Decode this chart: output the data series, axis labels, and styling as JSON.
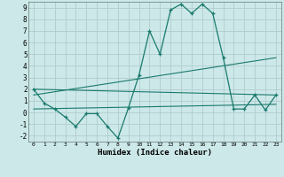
{
  "x": [
    0,
    1,
    2,
    3,
    4,
    5,
    6,
    7,
    8,
    9,
    10,
    11,
    12,
    13,
    14,
    15,
    16,
    17,
    18,
    19,
    20,
    21,
    22,
    23
  ],
  "humidex": [
    2.0,
    0.8,
    0.3,
    -0.4,
    -1.2,
    -0.1,
    -0.1,
    -1.2,
    -2.2,
    0.4,
    3.2,
    7.0,
    5.0,
    8.8,
    9.3,
    8.5,
    9.3,
    8.5,
    4.7,
    0.3,
    0.3,
    1.5,
    0.2,
    1.5
  ],
  "line1_x": [
    0,
    23
  ],
  "line1_y": [
    2.0,
    1.5
  ],
  "line2_x": [
    0,
    23
  ],
  "line2_y": [
    1.5,
    4.7
  ],
  "line3_x": [
    0,
    23
  ],
  "line3_y": [
    0.3,
    0.7
  ],
  "color": "#1a7a6e",
  "bg_color": "#cce8e8",
  "grid_color": "#b0cccc",
  "xlabel": "Humidex (Indice chaleur)",
  "xlim": [
    -0.5,
    23.5
  ],
  "ylim": [
    -2.5,
    9.5
  ],
  "xticks": [
    0,
    1,
    2,
    3,
    4,
    5,
    6,
    7,
    8,
    9,
    10,
    11,
    12,
    13,
    14,
    15,
    16,
    17,
    18,
    19,
    20,
    21,
    22,
    23
  ],
  "yticks": [
    -2,
    -1,
    0,
    1,
    2,
    3,
    4,
    5,
    6,
    7,
    8,
    9
  ]
}
